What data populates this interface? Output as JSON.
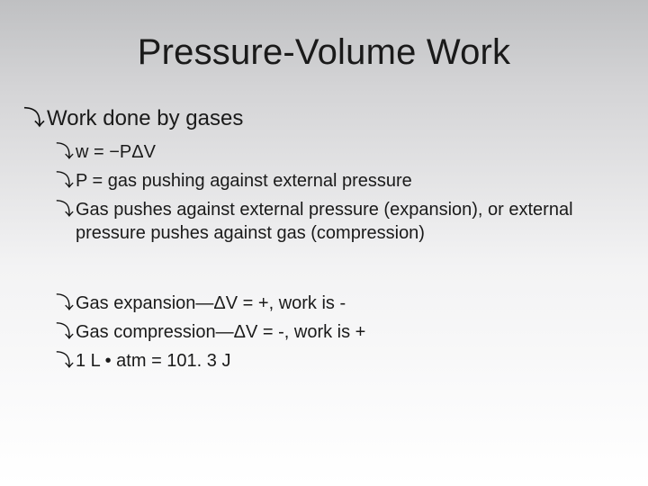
{
  "slide": {
    "title": "Pressure-Volume Work",
    "background_gradient": [
      "#bfc0c2",
      "#d4d4d6",
      "#f3f3f4",
      "#ffffff"
    ],
    "title_fontsize": 40,
    "l1_fontsize": 24,
    "l2_fontsize": 20,
    "bullet_glyph": "⤵",
    "text_color": "#1a1a1a",
    "items": [
      {
        "level": 1,
        "text": "Work done by gases",
        "children": [
          {
            "level": 2,
            "text": "w = −PΔV"
          },
          {
            "level": 2,
            "text": "P = gas pushing against external pressure"
          },
          {
            "level": 2,
            "text": "Gas pushes against external pressure (expansion), or external pressure pushes against gas (compression)"
          }
        ],
        "spacer_after": true,
        "children2": [
          {
            "level": 2,
            "text": "Gas expansion—ΔV = +, work is -"
          },
          {
            "level": 2,
            "text": "Gas compression—ΔV = -, work is +"
          },
          {
            "level": 2,
            "text": "1 L • atm = 101. 3 J"
          }
        ]
      }
    ]
  }
}
